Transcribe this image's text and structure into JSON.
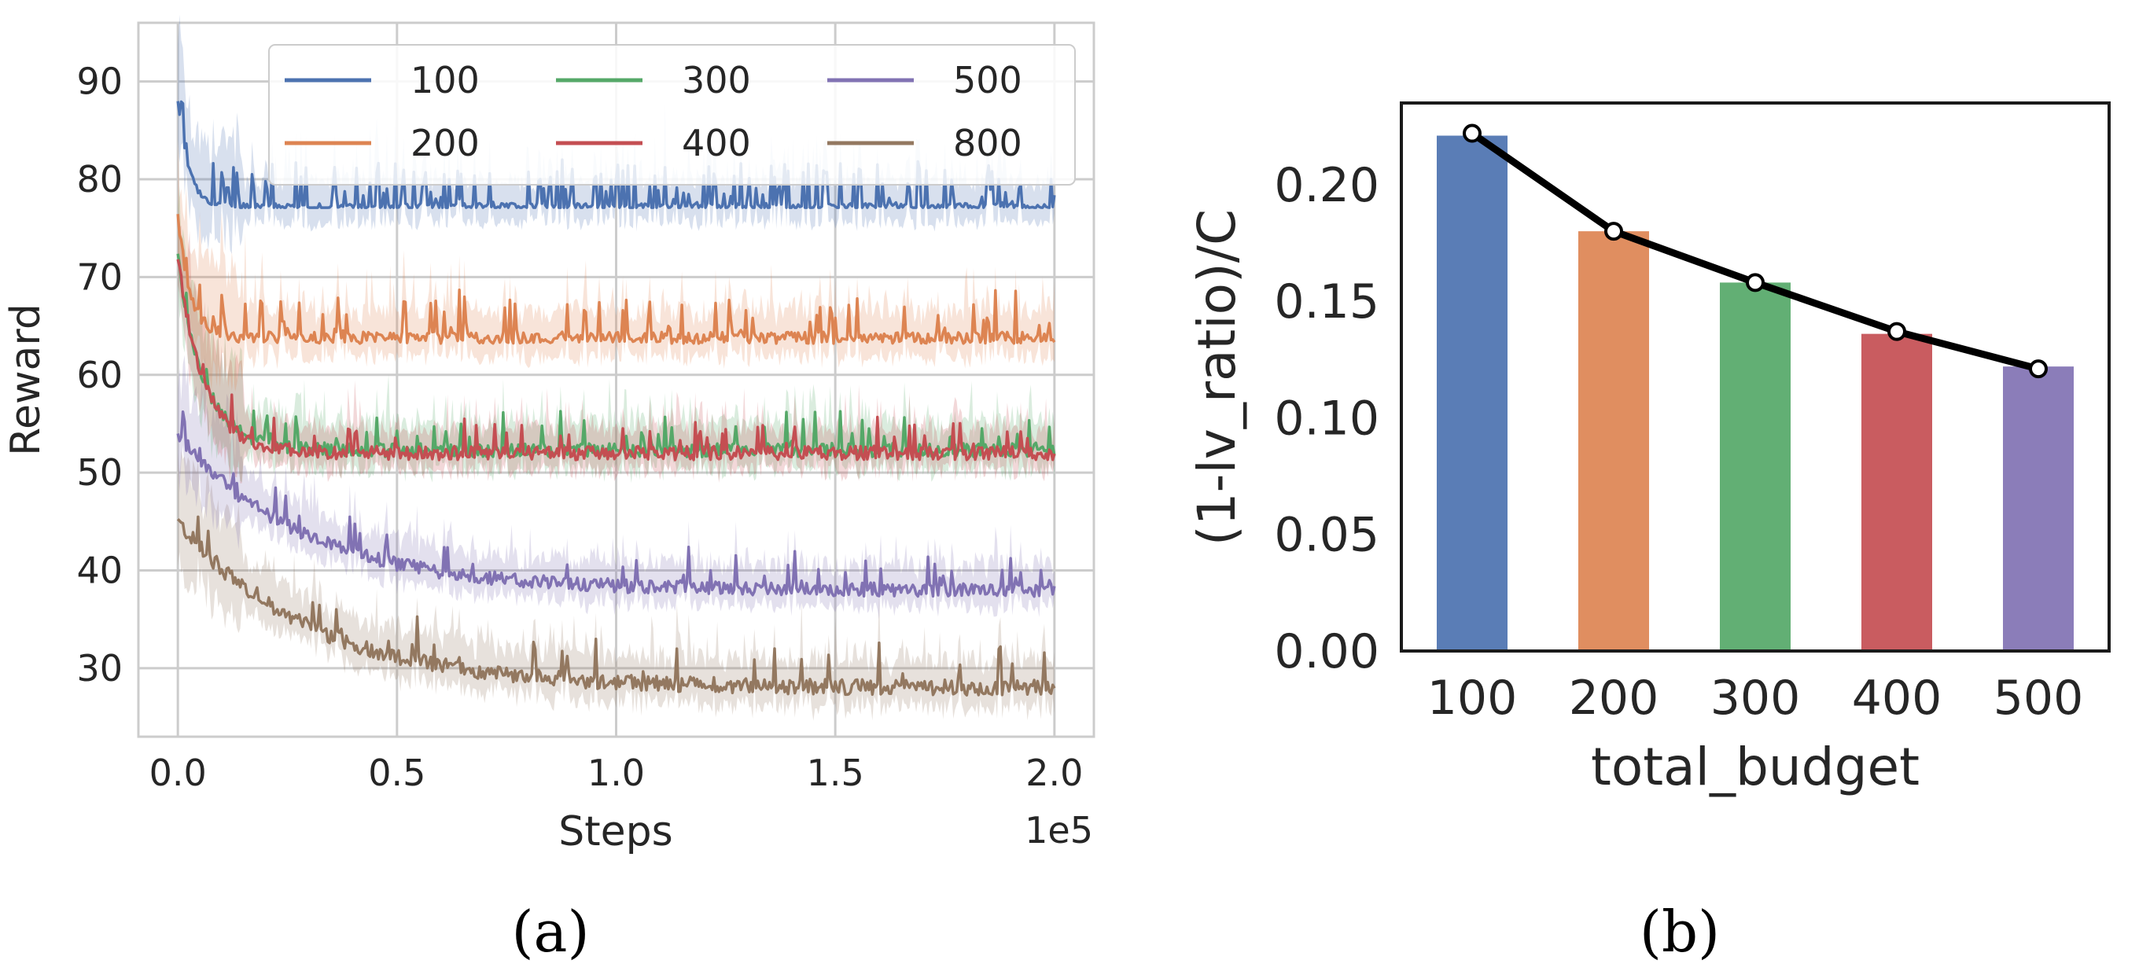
{
  "chart_data": [
    {
      "type": "line",
      "panel_label": "(a)",
      "xlabel": "Steps",
      "ylabel": "Reward",
      "x_multiplier": "1e5",
      "xlim": [
        -0.09,
        2.09
      ],
      "ylim": [
        23,
        96
      ],
      "xticks": [
        "0.0",
        "0.5",
        "1.0",
        "1.5",
        "2.0"
      ],
      "xtick_values": [
        0.0,
        0.5,
        1.0,
        1.5,
        2.0
      ],
      "yticks": [
        "30",
        "40",
        "50",
        "60",
        "70",
        "80",
        "90"
      ],
      "ytick_values": [
        30,
        40,
        50,
        60,
        70,
        80,
        90
      ],
      "grid": true,
      "legend_position": "top",
      "legend_columns": 3,
      "series": [
        {
          "name": "100",
          "color": "#4c72b0",
          "start": 88,
          "plateau": 77.2,
          "tau": 0.025,
          "noise": 0.35,
          "spike_rate": 0.22,
          "spike_max": 4.5,
          "band": 2.5
        },
        {
          "name": "200",
          "color": "#dd8452",
          "start": 76,
          "plateau": 63.8,
          "tau": 0.03,
          "noise": 0.6,
          "spike_rate": 0.15,
          "spike_max": 4.5,
          "band": 2.8
        },
        {
          "name": "300",
          "color": "#55a868",
          "start": 72,
          "plateau": 52.3,
          "tau": 0.06,
          "noise": 0.7,
          "spike_rate": 0.12,
          "spike_max": 3.5,
          "band": 2.8
        },
        {
          "name": "400",
          "color": "#c44e52",
          "start": 72,
          "plateau": 52.0,
          "tau": 0.06,
          "noise": 0.7,
          "spike_rate": 0.12,
          "spike_max": 3.5,
          "band": 2.5
        },
        {
          "name": "500",
          "color": "#8172b3",
          "start": 54,
          "plateau": 38.0,
          "tau": 0.28,
          "noise": 0.7,
          "spike_rate": 0.1,
          "spike_max": 3.5,
          "band": 2.5
        },
        {
          "name": "800",
          "color": "#937860",
          "start": 45,
          "plateau": 28.0,
          "tau": 0.3,
          "noise": 0.8,
          "spike_rate": 0.1,
          "spike_max": 4.0,
          "band": 2.8
        }
      ]
    },
    {
      "type": "bar",
      "panel_label": "(b)",
      "xlabel": "total_budget",
      "ylabel": "(1-lv_ratio)/C",
      "categories": [
        "100",
        "200",
        "300",
        "400",
        "500"
      ],
      "values": [
        0.221,
        0.18,
        0.158,
        0.136,
        0.122
      ],
      "line_values": [
        0.222,
        0.18,
        0.158,
        0.137,
        0.121
      ],
      "colors": [
        "#4c72b0",
        "#dd8452",
        "#55a868",
        "#c44e52",
        "#8172b3"
      ],
      "ylim": [
        0,
        0.235
      ],
      "yticks": [
        "0.00",
        "0.05",
        "0.10",
        "0.15",
        "0.20"
      ],
      "ytick_values": [
        0,
        0.05,
        0.1,
        0.15,
        0.2
      ]
    }
  ]
}
